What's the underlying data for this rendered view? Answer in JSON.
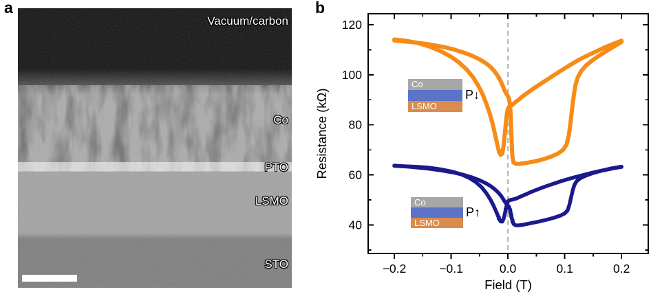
{
  "figure": {
    "panel_a_letter": "a",
    "panel_b_letter": "b"
  },
  "panel_a": {
    "description": "Cross-sectional TEM micrograph of the heterostructure",
    "layers": [
      {
        "label": "Vacuum/carbon",
        "shade": "#0b0b0b"
      },
      {
        "label": "Co",
        "shade": "#6f6f6f"
      },
      {
        "label": "PTO",
        "shade": "#c6c6c6"
      },
      {
        "label": "LSMO",
        "shade": "#a2a2a2"
      },
      {
        "label": "STO",
        "shade": "#7c7c7c"
      }
    ],
    "scalebar_color": "#ffffff"
  },
  "panel_b": {
    "insets": [
      {
        "layers": [
          {
            "label": "Co",
            "color": "#a7a7a7"
          },
          {
            "label": "",
            "color": "#5b74c8"
          },
          {
            "label": "LSMO",
            "color": "#d98c4e"
          }
        ],
        "annotation": "P↓"
      },
      {
        "layers": [
          {
            "label": "Co",
            "color": "#a7a7a7"
          },
          {
            "label": "",
            "color": "#5b74c8"
          },
          {
            "label": "LSMO",
            "color": "#d98c4e"
          }
        ],
        "annotation": "P↑"
      }
    ]
  },
  "chart_data": {
    "type": "line",
    "title": "",
    "xlabel": "Field (T)",
    "ylabel": "Resistance (kΩ)",
    "xlim": [
      -0.246,
      0.247
    ],
    "ylim": [
      28.6,
      124.4
    ],
    "grid": false,
    "legend_position": "none",
    "xticks": [
      -0.2,
      -0.1,
      0.0,
      0.1,
      0.2
    ],
    "xtick_labels": [
      "−0.2",
      "−0.1",
      "0.0",
      "0.1",
      "0.2"
    ],
    "x_minor_ticks": [
      -0.15,
      -0.05,
      0.05,
      0.15
    ],
    "yticks": [
      40,
      60,
      80,
      100,
      120
    ],
    "ytick_labels": [
      "40",
      "60",
      "80",
      "100",
      "120"
    ],
    "y_minor_ticks": [
      30,
      50,
      70,
      90,
      110
    ],
    "zero_line": {
      "x": 0,
      "style": "dashed",
      "color": "#a0a0a0"
    },
    "series": [
      {
        "id": "p-down",
        "name": "P↓",
        "color": "#f78b17",
        "line_width": 6,
        "branches": {
          "sweep_up": [
            [
              -0.2,
              113.7
            ],
            [
              -0.17,
              113.1
            ],
            [
              -0.14,
              112.2
            ],
            [
              -0.115,
              111.2
            ],
            [
              -0.095,
              110.1
            ],
            [
              -0.078,
              108.9
            ],
            [
              -0.063,
              107.6
            ],
            [
              -0.05,
              106.2
            ],
            [
              -0.04,
              104.8
            ],
            [
              -0.031,
              103.2
            ],
            [
              -0.024,
              101.5
            ],
            [
              -0.018,
              99.6
            ],
            [
              -0.013,
              97.6
            ],
            [
              -0.009,
              95.5
            ],
            [
              -0.006,
              93.8
            ],
            [
              -0.003,
              92.5
            ],
            [
              0.0,
              91.5
            ],
            [
              0.002,
              90.5
            ],
            [
              0.004,
              87.5
            ],
            [
              0.005,
              83.0
            ],
            [
              0.006,
              77.0
            ],
            [
              0.007,
              71.0
            ],
            [
              0.008,
              67.0
            ],
            [
              0.01,
              65.0
            ],
            [
              0.014,
              64.4
            ],
            [
              0.02,
              64.4
            ],
            [
              0.03,
              64.7
            ],
            [
              0.045,
              65.3
            ],
            [
              0.06,
              66.1
            ],
            [
              0.075,
              67.2
            ],
            [
              0.088,
              68.5
            ],
            [
              0.097,
              70.0
            ],
            [
              0.103,
              72.0
            ],
            [
              0.107,
              75.5
            ],
            [
              0.11,
              80.5
            ],
            [
              0.113,
              86.5
            ],
            [
              0.116,
              92.0
            ],
            [
              0.119,
              96.0
            ],
            [
              0.123,
              99.0
            ],
            [
              0.129,
              101.5
            ],
            [
              0.138,
              103.8
            ],
            [
              0.15,
              106.0
            ],
            [
              0.165,
              108.3
            ],
            [
              0.18,
              110.4
            ],
            [
              0.195,
              112.5
            ],
            [
              0.2,
              113.2
            ]
          ],
          "sweep_down": [
            [
              0.2,
              113.6
            ],
            [
              0.185,
              112.3
            ],
            [
              0.17,
              110.9
            ],
            [
              0.155,
              109.3
            ],
            [
              0.14,
              107.7
            ],
            [
              0.125,
              106.0
            ],
            [
              0.11,
              104.0
            ],
            [
              0.095,
              101.9
            ],
            [
              0.082,
              100.0
            ],
            [
              0.07,
              98.2
            ],
            [
              0.059,
              96.6
            ],
            [
              0.049,
              95.1
            ],
            [
              0.04,
              93.7
            ],
            [
              0.032,
              92.4
            ],
            [
              0.025,
              91.2
            ],
            [
              0.019,
              90.1
            ],
            [
              0.014,
              89.2
            ],
            [
              0.009,
              88.2
            ],
            [
              0.005,
              87.5
            ],
            [
              0.002,
              87.0
            ],
            [
              0.0,
              86.5
            ],
            [
              -0.002,
              84.0
            ],
            [
              -0.004,
              80.0
            ],
            [
              -0.006,
              75.0
            ],
            [
              -0.008,
              71.0
            ],
            [
              -0.01,
              68.5
            ],
            [
              -0.013,
              68.0
            ],
            [
              -0.016,
              69.5
            ],
            [
              -0.019,
              72.5
            ],
            [
              -0.023,
              76.5
            ],
            [
              -0.027,
              80.5
            ],
            [
              -0.032,
              84.5
            ],
            [
              -0.038,
              88.5
            ],
            [
              -0.045,
              92.5
            ],
            [
              -0.053,
              96.0
            ],
            [
              -0.062,
              99.2
            ],
            [
              -0.073,
              102.2
            ],
            [
              -0.086,
              104.9
            ],
            [
              -0.1,
              107.2
            ],
            [
              -0.118,
              109.4
            ],
            [
              -0.138,
              111.3
            ],
            [
              -0.16,
              112.8
            ],
            [
              -0.182,
              113.7
            ],
            [
              -0.2,
              114.1
            ]
          ]
        },
        "markers": [
          [
            -0.004,
            80.0
          ],
          [
            -0.002,
            84.0
          ],
          [
            0.005,
            83.0
          ],
          [
            0.006,
            77.0
          ],
          [
            0.007,
            71.0
          ],
          [
            0.01,
            65.0
          ],
          [
            -0.016,
            69.5
          ]
        ]
      },
      {
        "id": "p-up",
        "name": "P↑",
        "color": "#1a1a8c",
        "line_width": 5.5,
        "branches": {
          "sweep_up": [
            [
              -0.2,
              63.7
            ],
            [
              -0.17,
              63.2
            ],
            [
              -0.14,
              62.5
            ],
            [
              -0.115,
              61.7
            ],
            [
              -0.095,
              60.9
            ],
            [
              -0.078,
              60.0
            ],
            [
              -0.063,
              59.0
            ],
            [
              -0.05,
              57.9
            ],
            [
              -0.04,
              56.8
            ],
            [
              -0.031,
              55.6
            ],
            [
              -0.024,
              54.4
            ],
            [
              -0.018,
              53.2
            ],
            [
              -0.013,
              51.9
            ],
            [
              -0.009,
              50.6
            ],
            [
              -0.006,
              49.5
            ],
            [
              -0.003,
              48.5
            ],
            [
              0.0,
              47.8
            ],
            [
              0.002,
              47.2
            ],
            [
              0.004,
              45.8
            ],
            [
              0.006,
              43.6
            ],
            [
              0.008,
              41.6
            ],
            [
              0.01,
              40.4
            ],
            [
              0.013,
              39.9
            ],
            [
              0.018,
              39.8
            ],
            [
              0.027,
              40.1
            ],
            [
              0.04,
              40.7
            ],
            [
              0.055,
              41.4
            ],
            [
              0.07,
              42.2
            ],
            [
              0.083,
              43.0
            ],
            [
              0.093,
              43.8
            ],
            [
              0.1,
              44.6
            ],
            [
              0.105,
              45.8
            ],
            [
              0.108,
              47.8
            ],
            [
              0.111,
              50.8
            ],
            [
              0.114,
              53.8
            ],
            [
              0.117,
              56.0
            ],
            [
              0.121,
              57.5
            ],
            [
              0.127,
              58.6
            ],
            [
              0.136,
              59.6
            ],
            [
              0.148,
              60.6
            ],
            [
              0.163,
              61.6
            ],
            [
              0.18,
              62.5
            ],
            [
              0.2,
              63.3
            ]
          ],
          "sweep_down": [
            [
              0.2,
              63.2
            ],
            [
              0.185,
              62.6
            ],
            [
              0.17,
              61.9
            ],
            [
              0.155,
              61.2
            ],
            [
              0.14,
              60.4
            ],
            [
              0.125,
              59.5
            ],
            [
              0.11,
              58.6
            ],
            [
              0.095,
              57.6
            ],
            [
              0.082,
              56.6
            ],
            [
              0.07,
              55.7
            ],
            [
              0.059,
              54.8
            ],
            [
              0.049,
              53.9
            ],
            [
              0.04,
              53.1
            ],
            [
              0.032,
              52.3
            ],
            [
              0.025,
              51.6
            ],
            [
              0.019,
              51.0
            ],
            [
              0.014,
              50.5
            ],
            [
              0.009,
              50.2
            ],
            [
              0.005,
              50.0
            ],
            [
              0.002,
              49.8
            ],
            [
              0.0,
              49.4
            ],
            [
              -0.002,
              48.0
            ],
            [
              -0.004,
              46.0
            ],
            [
              -0.006,
              43.8
            ],
            [
              -0.008,
              42.2
            ],
            [
              -0.01,
              41.3
            ],
            [
              -0.013,
              41.4
            ],
            [
              -0.016,
              42.8
            ],
            [
              -0.02,
              45.0
            ],
            [
              -0.025,
              47.6
            ],
            [
              -0.031,
              50.2
            ],
            [
              -0.038,
              52.7
            ],
            [
              -0.046,
              55.0
            ],
            [
              -0.056,
              57.0
            ],
            [
              -0.068,
              58.8
            ],
            [
              -0.082,
              60.2
            ],
            [
              -0.098,
              61.3
            ],
            [
              -0.118,
              62.2
            ],
            [
              -0.14,
              62.9
            ],
            [
              -0.165,
              63.3
            ],
            [
              -0.2,
              63.6
            ]
          ]
        },
        "markers": [
          [
            -0.004,
            46.0
          ],
          [
            -0.002,
            48.0
          ],
          [
            0.004,
            45.8
          ],
          [
            0.006,
            43.6
          ],
          [
            0.008,
            41.6
          ],
          [
            -0.016,
            42.8
          ]
        ]
      }
    ]
  }
}
